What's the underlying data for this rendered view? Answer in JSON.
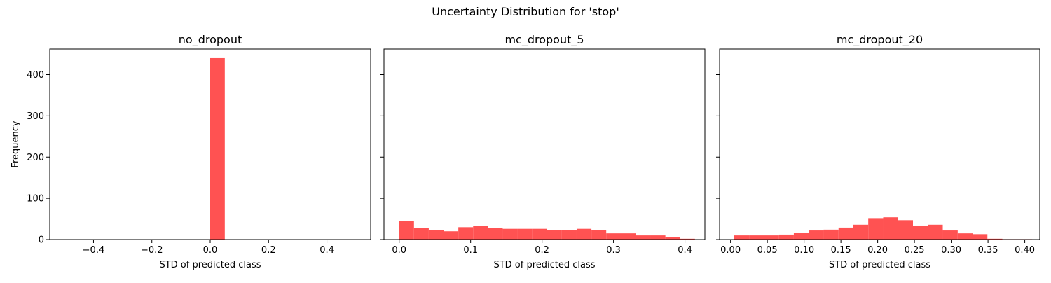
{
  "figure": {
    "suptitle": "Uncertainty Distribution for 'stop'"
  },
  "colors": {
    "bar": "#ff5252",
    "axis": "#000000",
    "background": "#ffffff"
  },
  "chart_data": [
    {
      "type": "bar",
      "title": "no_dropout",
      "xlabel": "STD of predicted class",
      "ylabel": "Frequency",
      "xlim": [
        -0.55,
        0.55
      ],
      "ylim": [
        0,
        462
      ],
      "xticks": [
        -0.4,
        -0.2,
        0.0,
        0.2,
        0.4
      ],
      "xtick_labels": [
        "−0.4",
        "−0.2",
        "0.0",
        "0.2",
        "0.4"
      ],
      "yticks": [
        0,
        100,
        200,
        300,
        400
      ],
      "ytick_labels": [
        "0",
        "100",
        "200",
        "300",
        "400"
      ],
      "bins": [
        {
          "x0": 0.0,
          "x1": 0.05,
          "count": 440
        }
      ]
    },
    {
      "type": "bar",
      "title": "mc_dropout_5",
      "xlabel": "STD of predicted class",
      "ylabel": "",
      "xlim": [
        -0.0213,
        0.4279
      ],
      "ylim": [
        0,
        462
      ],
      "xticks": [
        0.0,
        0.1,
        0.2,
        0.3,
        0.4
      ],
      "xtick_labels": [
        "0.0",
        "0.1",
        "0.2",
        "0.3",
        "0.4"
      ],
      "yticks": [
        0,
        100,
        200,
        300,
        400
      ],
      "ytick_labels": [],
      "bins": [
        {
          "x0": 0.0,
          "x1": 0.0207,
          "count": 45
        },
        {
          "x0": 0.0207,
          "x1": 0.0414,
          "count": 28
        },
        {
          "x0": 0.0414,
          "x1": 0.0621,
          "count": 23
        },
        {
          "x0": 0.0621,
          "x1": 0.0828,
          "count": 20
        },
        {
          "x0": 0.0828,
          "x1": 0.1035,
          "count": 30
        },
        {
          "x0": 0.1035,
          "x1": 0.1242,
          "count": 33
        },
        {
          "x0": 0.1242,
          "x1": 0.1449,
          "count": 28
        },
        {
          "x0": 0.1449,
          "x1": 0.1656,
          "count": 26
        },
        {
          "x0": 0.1656,
          "x1": 0.1863,
          "count": 26
        },
        {
          "x0": 0.1863,
          "x1": 0.207,
          "count": 26
        },
        {
          "x0": 0.207,
          "x1": 0.2277,
          "count": 23
        },
        {
          "x0": 0.2277,
          "x1": 0.2484,
          "count": 23
        },
        {
          "x0": 0.2484,
          "x1": 0.2691,
          "count": 26
        },
        {
          "x0": 0.2691,
          "x1": 0.2898,
          "count": 23
        },
        {
          "x0": 0.2898,
          "x1": 0.3105,
          "count": 15
        },
        {
          "x0": 0.3105,
          "x1": 0.3312,
          "count": 15
        },
        {
          "x0": 0.3312,
          "x1": 0.3519,
          "count": 10
        },
        {
          "x0": 0.3519,
          "x1": 0.3726,
          "count": 10
        },
        {
          "x0": 0.3726,
          "x1": 0.3933,
          "count": 6
        },
        {
          "x0": 0.3933,
          "x1": 0.414,
          "count": 2
        }
      ]
    },
    {
      "type": "bar",
      "title": "mc_dropout_20",
      "xlabel": "STD of predicted class",
      "ylabel": "",
      "xlim": [
        -0.0149,
        0.4204
      ],
      "ylim": [
        0,
        462
      ],
      "xticks": [
        0.0,
        0.05,
        0.1,
        0.15,
        0.2,
        0.25,
        0.3,
        0.35,
        0.4
      ],
      "xtick_labels": [
        "0.00",
        "0.05",
        "0.10",
        "0.15",
        "0.20",
        "0.25",
        "0.30",
        "0.35",
        "0.40"
      ],
      "yticks": [
        0,
        100,
        200,
        300,
        400
      ],
      "ytick_labels": [],
      "bins": [
        {
          "x0": 0.005,
          "x1": 0.0252,
          "count": 10
        },
        {
          "x0": 0.0252,
          "x1": 0.0455,
          "count": 10
        },
        {
          "x0": 0.0455,
          "x1": 0.0658,
          "count": 10
        },
        {
          "x0": 0.0658,
          "x1": 0.086,
          "count": 12
        },
        {
          "x0": 0.086,
          "x1": 0.1062,
          "count": 17
        },
        {
          "x0": 0.1062,
          "x1": 0.1265,
          "count": 22
        },
        {
          "x0": 0.1265,
          "x1": 0.1468,
          "count": 24
        },
        {
          "x0": 0.1468,
          "x1": 0.167,
          "count": 29
        },
        {
          "x0": 0.167,
          "x1": 0.1872,
          "count": 36
        },
        {
          "x0": 0.1872,
          "x1": 0.2075,
          "count": 52
        },
        {
          "x0": 0.2075,
          "x1": 0.2278,
          "count": 54
        },
        {
          "x0": 0.2278,
          "x1": 0.248,
          "count": 47
        },
        {
          "x0": 0.248,
          "x1": 0.2682,
          "count": 34
        },
        {
          "x0": 0.2682,
          "x1": 0.2885,
          "count": 36
        },
        {
          "x0": 0.2885,
          "x1": 0.3088,
          "count": 22
        },
        {
          "x0": 0.3088,
          "x1": 0.329,
          "count": 15
        },
        {
          "x0": 0.329,
          "x1": 0.3492,
          "count": 13
        },
        {
          "x0": 0.3492,
          "x1": 0.3695,
          "count": 2
        },
        {
          "x0": 0.3695,
          "x1": 0.3898,
          "count": 1
        },
        {
          "x0": 0.3898,
          "x1": 0.41,
          "count": 1
        }
      ]
    }
  ]
}
